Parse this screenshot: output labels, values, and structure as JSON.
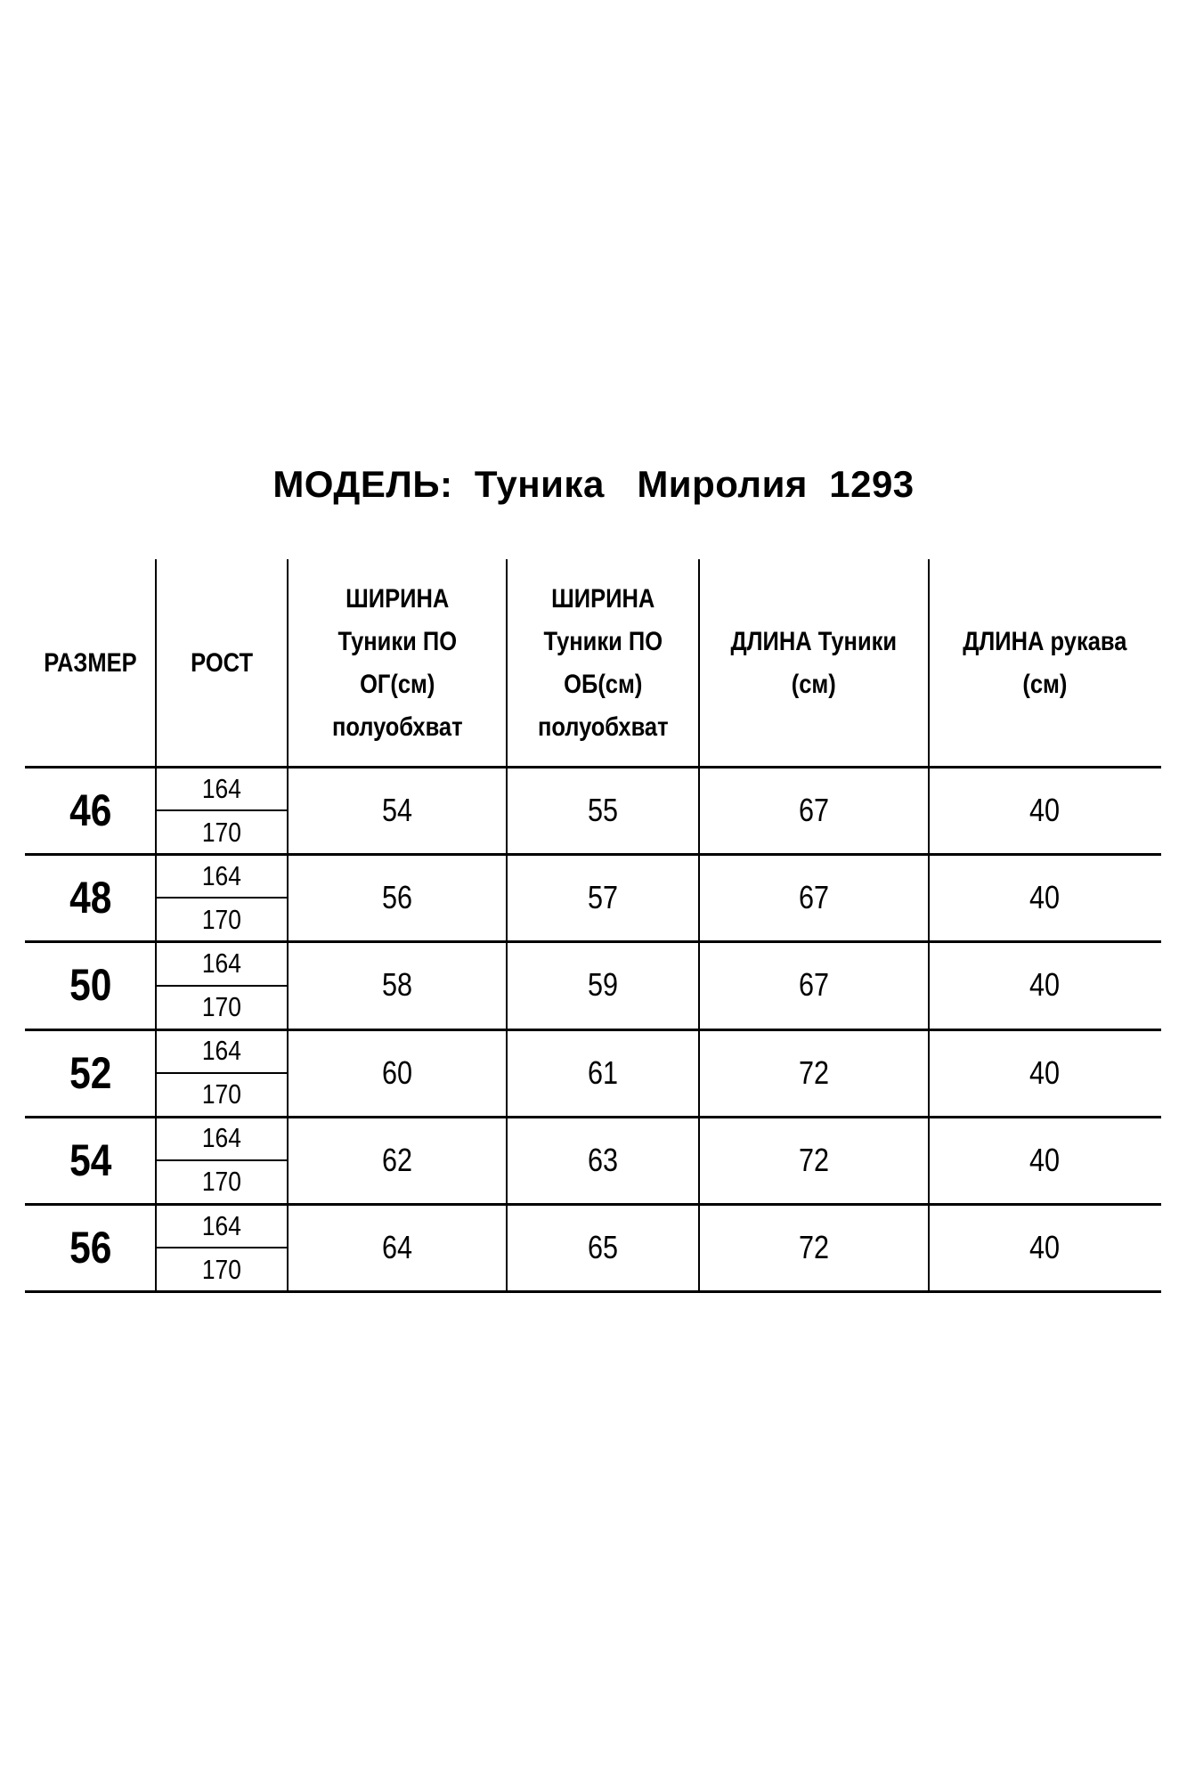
{
  "title": "МОДЕЛЬ:  Туника   Миролия  1293",
  "headers": [
    [
      "РАЗМЕР"
    ],
    [
      "РОСТ"
    ],
    [
      "ШИРИНА",
      "Туники ПО",
      "ОГ(см)",
      "полуобхват"
    ],
    [
      "ШИРИНА",
      "Туники ПО",
      "ОБ(см)",
      "полуобхват"
    ],
    [
      "ДЛИНА Туники",
      "(см)"
    ],
    [
      "ДЛИНА рукава",
      "(см)"
    ]
  ],
  "rows": [
    {
      "size": "46",
      "heights": [
        "164",
        "170"
      ],
      "og": "54",
      "ob": "55",
      "length": "67",
      "sleeve": "40"
    },
    {
      "size": "48",
      "heights": [
        "164",
        "170"
      ],
      "og": "56",
      "ob": "57",
      "length": "67",
      "sleeve": "40"
    },
    {
      "size": "50",
      "heights": [
        "164",
        "170"
      ],
      "og": "58",
      "ob": "59",
      "length": "67",
      "sleeve": "40"
    },
    {
      "size": "52",
      "heights": [
        "164",
        "170"
      ],
      "og": "60",
      "ob": "61",
      "length": "72",
      "sleeve": "40"
    },
    {
      "size": "54",
      "heights": [
        "164",
        "170"
      ],
      "og": "62",
      "ob": "63",
      "length": "72",
      "sleeve": "40"
    },
    {
      "size": "56",
      "heights": [
        "164",
        "170"
      ],
      "og": "64",
      "ob": "65",
      "length": "72",
      "sleeve": "40"
    }
  ]
}
